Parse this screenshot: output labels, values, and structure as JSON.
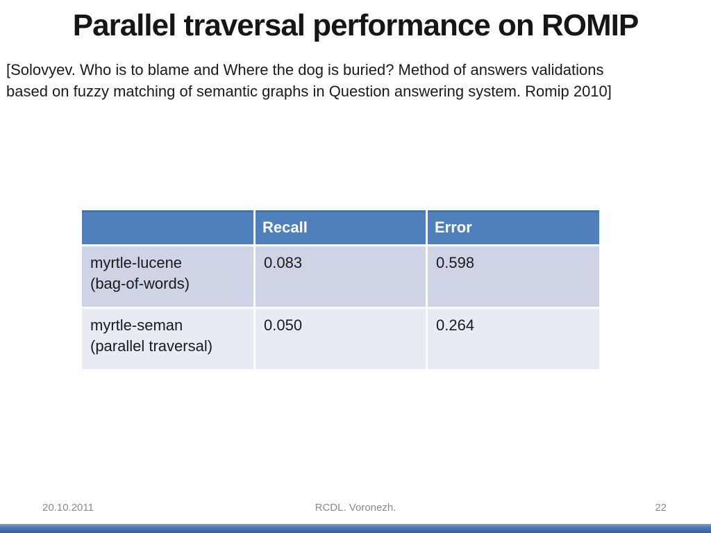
{
  "slide": {
    "title": "Parallel traversal performance on ROMIP",
    "citation_lines": [
      "[Solovyev. Who is to blame and Where the dog is buried? Method of answers validations",
      "based on fuzzy matching of semantic graphs in Question answering system. Romip 2010]"
    ],
    "table": {
      "columns": [
        "",
        "Recall",
        "Error"
      ],
      "rows": [
        {
          "label_line1": "myrtle-lucene",
          "label_line2": "(bag-of-words)",
          "recall": "0.083",
          "error": "0.598"
        },
        {
          "label_line1": "myrtle-seman",
          "label_line2": "(parallel traversal)",
          "recall": "0.050",
          "error": "0.264"
        }
      ]
    },
    "footer": {
      "date": "20.10.2011",
      "venue": "RCDL. Voronezh.",
      "page_number": "22"
    },
    "colors": {
      "header_bg": "#4f80bc",
      "row_odd_bg": "#ced4e5",
      "row_even_bg": "#e9ebf4",
      "bottom_bar": "#4a76ae"
    }
  }
}
